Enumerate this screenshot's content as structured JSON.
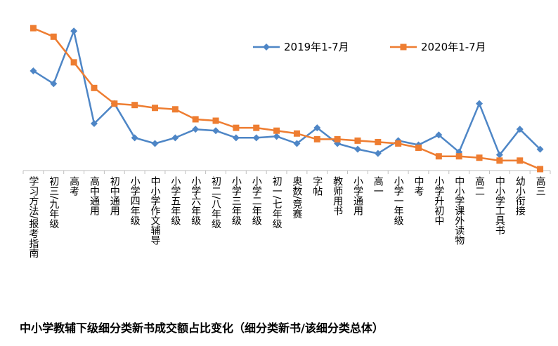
{
  "caption": "中小学教辅下级细分类新书成交额占比变化（细分类新书/该细分类总体）",
  "chart_data": {
    "type": "line",
    "categories": [
      "学习方法/报考指南",
      "初三/九年级",
      "高考",
      "高中通用",
      "初中通用",
      "小学四年级",
      "中小学作文辅导",
      "小学五年级",
      "小学六年级",
      "初二/八年级",
      "小学三年级",
      "小学二年级",
      "初一/七年级",
      "奥数/竞赛",
      "字帖",
      "教师用书",
      "小学通用",
      "高一",
      "小学一年级",
      "中考",
      "小学升初中",
      "中小学课外读物",
      "高二",
      "中小学工具书",
      "幼小衔接",
      "高三"
    ],
    "series": [
      {
        "name": "2019年1-7月",
        "color": "#4e86c6",
        "marker": "diamond",
        "values": [
          0.7,
          0.61,
          0.98,
          0.33,
          0.47,
          0.23,
          0.19,
          0.23,
          0.29,
          0.28,
          0.23,
          0.23,
          0.24,
          0.19,
          0.3,
          0.19,
          0.15,
          0.12,
          0.21,
          0.18,
          0.25,
          0.13,
          0.47,
          0.11,
          0.29,
          0.15
        ]
      },
      {
        "name": "2020年1-7月",
        "color": "#ee7d31",
        "marker": "square",
        "values": [
          1.0,
          0.94,
          0.76,
          0.58,
          0.47,
          0.46,
          0.44,
          0.43,
          0.36,
          0.35,
          0.3,
          0.3,
          0.28,
          0.26,
          0.22,
          0.22,
          0.21,
          0.2,
          0.19,
          0.16,
          0.1,
          0.1,
          0.09,
          0.07,
          0.07,
          0.01
        ]
      }
    ],
    "ylim": [
      0,
      1.05
    ],
    "grid": false,
    "legend": "top-right"
  }
}
